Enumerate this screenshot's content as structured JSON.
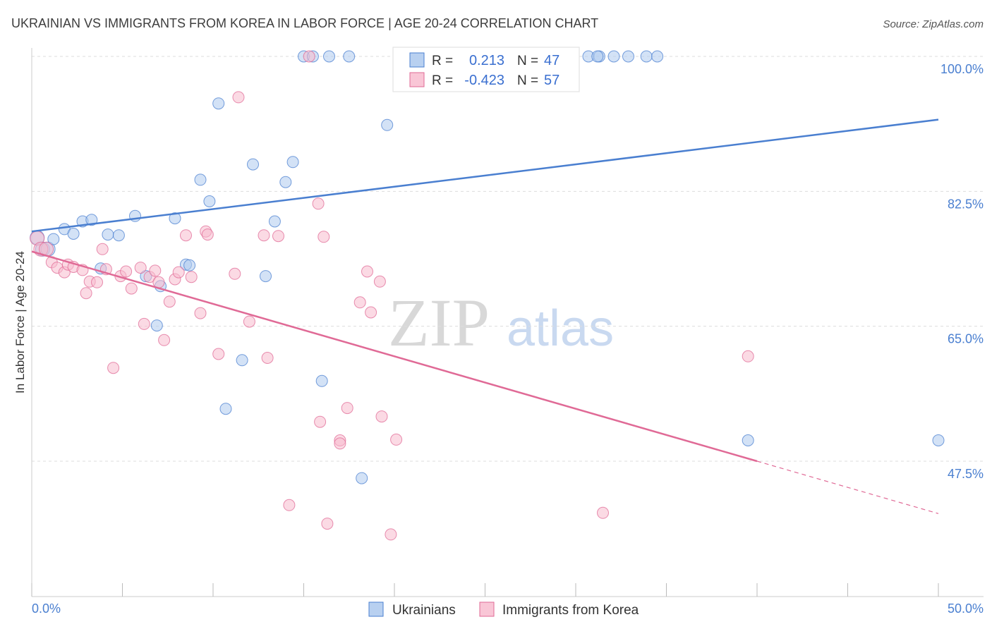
{
  "title": "UKRAINIAN VS IMMIGRANTS FROM KOREA IN LABOR FORCE | AGE 20-24 CORRELATION CHART",
  "source": "Source: ZipAtlas.com",
  "watermark": {
    "zip": "ZIP",
    "atlas": "atlas"
  },
  "colors": {
    "blue": "#4a7fd0",
    "blue_fill": "#aecbef",
    "pink": "#e06a96",
    "pink_fill": "#f7bccd",
    "grid": "#dddddd"
  },
  "stats_legend": [
    {
      "r_label": "R =",
      "r_value": "0.213",
      "n_label": "N =",
      "n_value": "47"
    },
    {
      "r_label": "R =",
      "r_value": "-0.423",
      "n_label": "N =",
      "n_value": "57"
    }
  ],
  "chart_data": {
    "type": "scatter",
    "title": "UKRAINIAN VS IMMIGRANTS FROM KOREA IN LABOR FORCE | AGE 20-24 CORRELATION CHART",
    "xlabel": "",
    "ylabel": "In Labor Force | Age 20-24",
    "xlim": [
      0,
      50
    ],
    "ylim": [
      31.5,
      103.5
    ],
    "x_tick_labels": [
      "0.0%",
      "50.0%"
    ],
    "y_ticks": [
      100.0,
      82.5,
      65.0,
      47.5
    ],
    "y_tick_labels": [
      "100.0%",
      "82.5%",
      "65.0%",
      "47.5%"
    ],
    "grid": true,
    "legend_position": "bottom",
    "series": [
      {
        "name": "Ukrainians",
        "color": "#4a7fd0",
        "trend": {
          "x": [
            0,
            50
          ],
          "y": [
            77.3,
            91.8
          ]
        },
        "points": [
          [
            0.3,
            76.5
          ],
          [
            0.6,
            75.0
          ],
          [
            0.9,
            75.0
          ],
          [
            1.2,
            76.3
          ],
          [
            1.8,
            77.6
          ],
          [
            2.3,
            77.0
          ],
          [
            2.8,
            78.6
          ],
          [
            3.3,
            78.8
          ],
          [
            3.8,
            72.5
          ],
          [
            4.2,
            76.9
          ],
          [
            4.8,
            76.8
          ],
          [
            5.7,
            79.3
          ],
          [
            6.3,
            71.5
          ],
          [
            7.1,
            70.2
          ],
          [
            6.9,
            65.1
          ],
          [
            7.9,
            79.0
          ],
          [
            8.5,
            73.0
          ],
          [
            8.7,
            72.9
          ],
          [
            9.3,
            84.0
          ],
          [
            9.8,
            81.2
          ],
          [
            10.3,
            93.9
          ],
          [
            10.7,
            54.3
          ],
          [
            11.6,
            60.6
          ],
          [
            12.2,
            86.0
          ],
          [
            12.9,
            71.5
          ],
          [
            13.4,
            78.6
          ],
          [
            14.0,
            83.7
          ],
          [
            14.4,
            86.3
          ],
          [
            15.0,
            100.0
          ],
          [
            15.5,
            100.0
          ],
          [
            16.0,
            57.9
          ],
          [
            16.4,
            100.0
          ],
          [
            17.5,
            100.0
          ],
          [
            18.2,
            45.3
          ],
          [
            19.6,
            91.1
          ],
          [
            21.1,
            100.0
          ],
          [
            22.1,
            100.0
          ],
          [
            24.0,
            100.0
          ],
          [
            30.7,
            100.0
          ],
          [
            31.3,
            100.0
          ],
          [
            32.1,
            100.0
          ],
          [
            32.9,
            100.0
          ],
          [
            33.9,
            100.0
          ],
          [
            34.5,
            100.0
          ],
          [
            39.5,
            50.2
          ],
          [
            50.0,
            50.2
          ],
          [
            31.2,
            100.0
          ]
        ]
      },
      {
        "name": "Immigrants from Korea",
        "color": "#e06a96",
        "trend": {
          "x": [
            0,
            40
          ],
          "y": [
            74.7,
            47.5
          ]
        },
        "trend_dashed": {
          "x": [
            40,
            50
          ],
          "y": [
            47.5,
            40.7
          ]
        },
        "points": [
          [
            0.3,
            76.4
          ],
          [
            0.5,
            75.0
          ],
          [
            0.8,
            75.0
          ],
          [
            1.1,
            73.3
          ],
          [
            1.4,
            72.6
          ],
          [
            1.8,
            72.0
          ],
          [
            2.0,
            73.0
          ],
          [
            2.3,
            72.7
          ],
          [
            2.8,
            72.3
          ],
          [
            3.0,
            69.3
          ],
          [
            3.2,
            70.8
          ],
          [
            3.6,
            70.7
          ],
          [
            3.9,
            75.0
          ],
          [
            4.1,
            72.4
          ],
          [
            4.5,
            59.6
          ],
          [
            4.9,
            71.5
          ],
          [
            5.2,
            72.1
          ],
          [
            5.5,
            69.9
          ],
          [
            6.0,
            72.6
          ],
          [
            6.2,
            65.3
          ],
          [
            6.5,
            71.4
          ],
          [
            6.8,
            72.2
          ],
          [
            7.0,
            70.7
          ],
          [
            7.3,
            63.2
          ],
          [
            7.6,
            68.2
          ],
          [
            7.9,
            71.1
          ],
          [
            8.1,
            72.0
          ],
          [
            8.5,
            76.8
          ],
          [
            8.8,
            71.4
          ],
          [
            9.3,
            66.7
          ],
          [
            9.6,
            77.3
          ],
          [
            9.7,
            76.9
          ],
          [
            10.3,
            61.4
          ],
          [
            11.2,
            71.8
          ],
          [
            11.4,
            94.7
          ],
          [
            12.0,
            65.6
          ],
          [
            12.8,
            76.8
          ],
          [
            13.0,
            60.9
          ],
          [
            13.6,
            76.7
          ],
          [
            14.2,
            41.8
          ],
          [
            15.3,
            100.0
          ],
          [
            15.8,
            80.9
          ],
          [
            15.9,
            52.6
          ],
          [
            16.1,
            76.6
          ],
          [
            16.3,
            39.4
          ],
          [
            17.0,
            50.2
          ],
          [
            17.0,
            49.8
          ],
          [
            17.4,
            54.4
          ],
          [
            18.1,
            68.1
          ],
          [
            18.5,
            72.1
          ],
          [
            18.7,
            66.8
          ],
          [
            19.2,
            70.8
          ],
          [
            19.3,
            53.3
          ],
          [
            19.8,
            38.0
          ],
          [
            20.1,
            50.3
          ],
          [
            31.5,
            40.8
          ],
          [
            39.5,
            61.1
          ]
        ]
      }
    ]
  }
}
